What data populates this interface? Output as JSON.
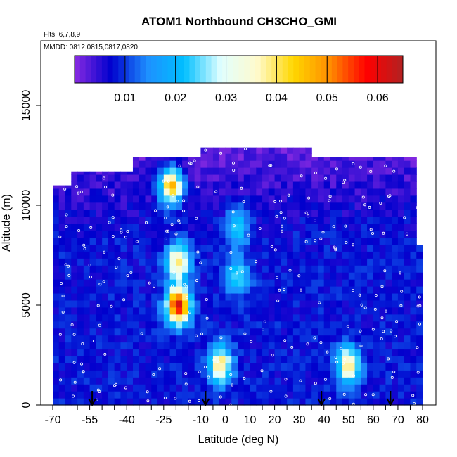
{
  "chart_data": {
    "type": "heatmap",
    "title": "ATOM1 Northbound CH3CHO_GMI",
    "flights_note": "Flts: 6,7,8,9",
    "dates_note": "MMDD: 0812,0815,0817,0820",
    "xlabel": "Latitude (deg N)",
    "ylabel": "Altitude (m)",
    "xlim": [
      -70,
      82
    ],
    "ylim": [
      0,
      17500
    ],
    "x_ticks": [
      -70,
      -55,
      -40,
      -25,
      -10,
      0,
      10,
      20,
      30,
      40,
      50,
      60,
      70,
      80
    ],
    "x_tick_labels": [
      "-70",
      "-55",
      "-40",
      "-25",
      "-10",
      "0",
      "10",
      "20",
      "30",
      "40",
      "50",
      "60",
      "70",
      "80"
    ],
    "y_ticks": [
      0,
      5000,
      10000,
      15000
    ],
    "y_tick_labels": [
      "0",
      "5000",
      "10000",
      "15000"
    ],
    "colorbar": {
      "range": [
        0.0,
        0.065
      ],
      "ticks": [
        0.01,
        0.02,
        0.03,
        0.04,
        0.05,
        0.06
      ],
      "tick_labels": [
        "0.01",
        "0.02",
        "0.03",
        "0.04",
        "0.05",
        "0.06"
      ],
      "colors": [
        "#8a2be2",
        "#0000cd",
        "#1e90ff",
        "#00bfff",
        "#e0ffff",
        "#fffacd",
        "#ffd700",
        "#ff8c00",
        "#ff0000",
        "#b22222"
      ]
    },
    "arrow_latitudes": [
      -54,
      -8,
      39,
      67
    ],
    "background_value": 0.008,
    "column_tops": [
      {
        "x0": -70,
        "x1": -63,
        "top": 11000
      },
      {
        "x0": -63,
        "x1": -38,
        "top": 11700
      },
      {
        "x0": -38,
        "x1": -10,
        "top": 12400
      },
      {
        "x0": -10,
        "x1": 36,
        "top": 12900
      },
      {
        "x0": 36,
        "x1": 78,
        "top": 12400
      },
      {
        "x0": 78,
        "x1": 80,
        "top": 8000
      }
    ],
    "hotspots": [
      {
        "lat": -19,
        "alt": 5000,
        "value": 0.062
      },
      {
        "lat": -19,
        "alt": 7200,
        "value": 0.04
      },
      {
        "lat": -22,
        "alt": 11000,
        "value": 0.05
      },
      {
        "lat": -2,
        "alt": 2000,
        "value": 0.04
      },
      {
        "lat": 50,
        "alt": 2000,
        "value": 0.038
      },
      {
        "lat": 5,
        "alt": 6500,
        "value": 0.025
      },
      {
        "lat": 5,
        "alt": 9000,
        "value": 0.024
      }
    ],
    "legend_placement": "top",
    "grid": false
  }
}
